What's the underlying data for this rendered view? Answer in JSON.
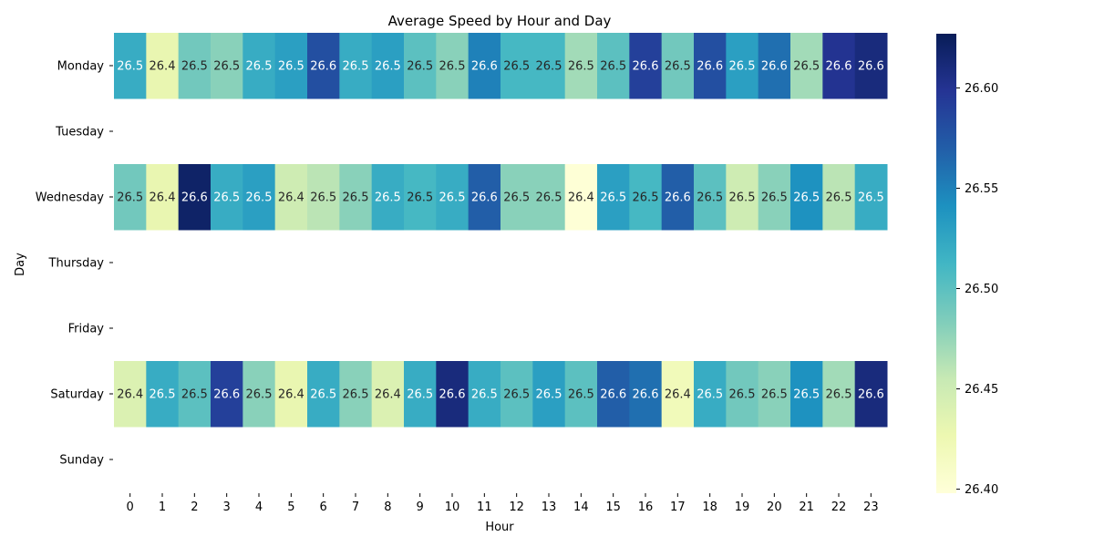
{
  "chart_data": {
    "type": "heatmap",
    "title": "Average Speed by Hour and Day",
    "xlabel": "Hour",
    "ylabel": "Day",
    "x_categories": [
      "0",
      "1",
      "2",
      "3",
      "4",
      "5",
      "6",
      "7",
      "8",
      "9",
      "10",
      "11",
      "12",
      "13",
      "14",
      "15",
      "16",
      "17",
      "18",
      "19",
      "20",
      "21",
      "22",
      "23"
    ],
    "y_categories": [
      "Monday",
      "Tuesday",
      "Wednesday",
      "Thursday",
      "Friday",
      "Saturday",
      "Sunday"
    ],
    "values": [
      [
        26.52,
        26.43,
        26.49,
        26.48,
        26.52,
        26.53,
        26.58,
        26.52,
        26.53,
        26.5,
        26.48,
        26.55,
        26.51,
        26.51,
        26.47,
        26.5,
        26.59,
        26.49,
        26.58,
        26.53,
        26.56,
        26.47,
        26.6,
        26.61
      ],
      [
        null,
        null,
        null,
        null,
        null,
        null,
        null,
        null,
        null,
        null,
        null,
        null,
        null,
        null,
        null,
        null,
        null,
        null,
        null,
        null,
        null,
        null,
        null,
        null
      ],
      [
        26.49,
        26.43,
        26.62,
        26.52,
        26.53,
        26.45,
        26.46,
        26.48,
        26.52,
        26.51,
        26.52,
        26.57,
        26.48,
        26.48,
        26.4,
        26.53,
        26.51,
        26.57,
        26.5,
        26.45,
        26.48,
        26.54,
        26.46,
        26.52
      ],
      [
        null,
        null,
        null,
        null,
        null,
        null,
        null,
        null,
        null,
        null,
        null,
        null,
        null,
        null,
        null,
        null,
        null,
        null,
        null,
        null,
        null,
        null,
        null,
        null
      ],
      [
        null,
        null,
        null,
        null,
        null,
        null,
        null,
        null,
        null,
        null,
        null,
        null,
        null,
        null,
        null,
        null,
        null,
        null,
        null,
        null,
        null,
        null,
        null,
        null
      ],
      [
        26.44,
        26.52,
        26.5,
        26.59,
        26.48,
        26.43,
        26.52,
        26.48,
        26.44,
        26.52,
        26.61,
        26.52,
        26.5,
        26.53,
        26.5,
        26.57,
        26.56,
        26.42,
        26.52,
        26.49,
        26.48,
        26.54,
        26.47,
        26.61
      ],
      [
        null,
        null,
        null,
        null,
        null,
        null,
        null,
        null,
        null,
        null,
        null,
        null,
        null,
        null,
        null,
        null,
        null,
        null,
        null,
        null,
        null,
        null,
        null,
        null
      ]
    ],
    "annotations": [
      [
        "26.5",
        "26.4",
        "26.5",
        "26.5",
        "26.5",
        "26.5",
        "26.6",
        "26.5",
        "26.5",
        "26.5",
        "26.5",
        "26.6",
        "26.5",
        "26.5",
        "26.5",
        "26.5",
        "26.6",
        "26.5",
        "26.6",
        "26.5",
        "26.6",
        "26.5",
        "26.6",
        "26.6"
      ],
      [],
      [
        "26.5",
        "26.4",
        "26.6",
        "26.5",
        "26.5",
        "26.4",
        "26.5",
        "26.5",
        "26.5",
        "26.5",
        "26.5",
        "26.6",
        "26.5",
        "26.5",
        "26.4",
        "26.5",
        "26.5",
        "26.6",
        "26.5",
        "26.5",
        "26.5",
        "26.5",
        "26.5",
        "26.5"
      ],
      [],
      [],
      [
        "26.4",
        "26.5",
        "26.5",
        "26.6",
        "26.5",
        "26.4",
        "26.5",
        "26.5",
        "26.4",
        "26.5",
        "26.6",
        "26.5",
        "26.5",
        "26.5",
        "26.5",
        "26.6",
        "26.6",
        "26.4",
        "26.5",
        "26.5",
        "26.5",
        "26.5",
        "26.5",
        "26.6"
      ],
      []
    ],
    "colormap": "YlGnBu",
    "colorbar": {
      "min": 26.398,
      "max": 26.627,
      "ticks": [
        "26.40",
        "26.45",
        "26.50",
        "26.55",
        "26.60"
      ],
      "tick_values": [
        26.4,
        26.45,
        26.5,
        26.55,
        26.6
      ]
    },
    "grid": false,
    "legend": "colorbar-right"
  }
}
